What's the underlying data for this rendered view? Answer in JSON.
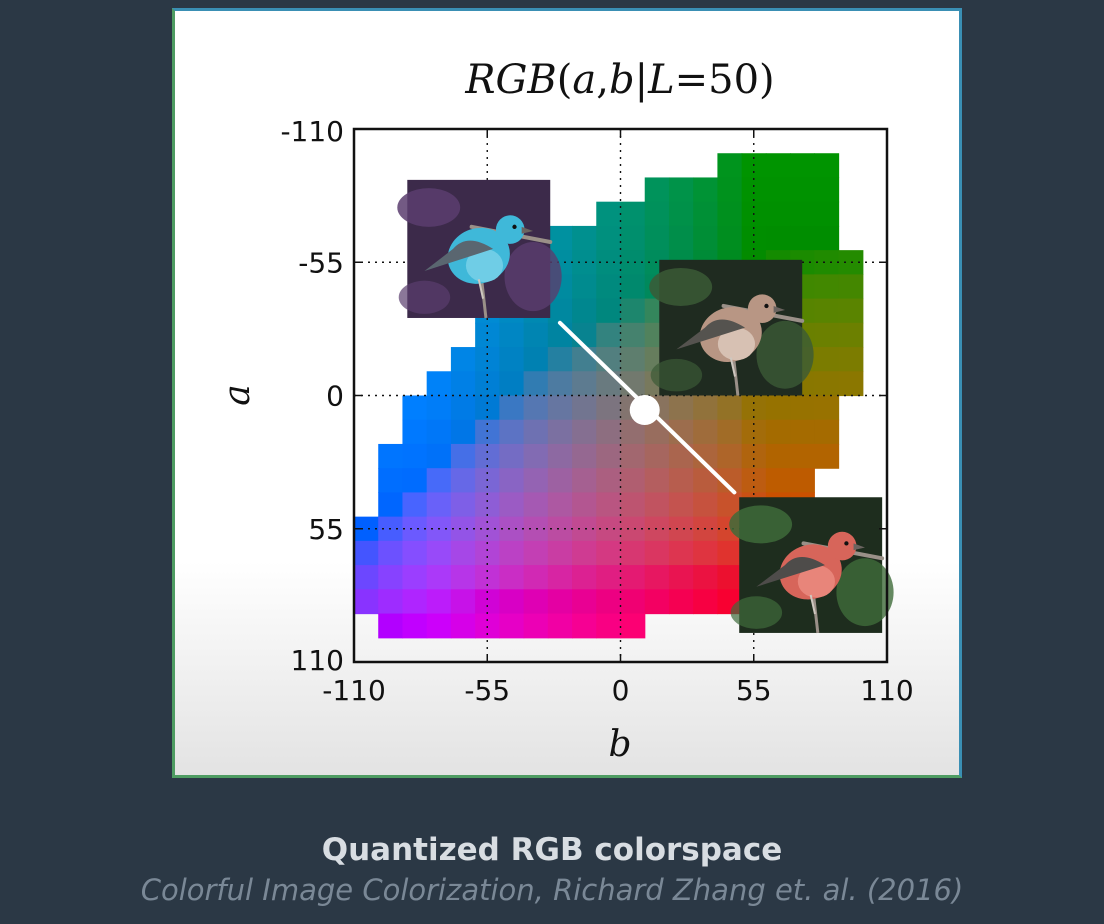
{
  "chart_data": {
    "type": "heatmap",
    "title": "RGB(a,b|L=50)",
    "xlabel": "b",
    "ylabel": "a",
    "xlim": [
      -110,
      110
    ],
    "ylim": [
      -110,
      110
    ],
    "y_inverted": true,
    "grid": true,
    "xticks": [
      "-110",
      "-55",
      "0",
      "55",
      "110"
    ],
    "yticks": [
      "-110",
      "-55",
      "0",
      "55",
      "110"
    ],
    "tick_values": [
      -110,
      -55,
      0,
      55,
      110
    ],
    "grid_values": [
      -55,
      0,
      55
    ],
    "cell_size": 10,
    "lightness": 50,
    "gamut_rows": [
      {
        "a": -95,
        "b_min": 45,
        "b_max": 85
      },
      {
        "a": -85,
        "b_min": 15,
        "b_max": 85
      },
      {
        "a": -75,
        "b_min": -5,
        "b_max": 85
      },
      {
        "a": -65,
        "b_min": -25,
        "b_max": 85
      },
      {
        "a": -55,
        "b_min": -35,
        "b_max": 95
      },
      {
        "a": -45,
        "b_min": -45,
        "b_max": 95
      },
      {
        "a": -35,
        "b_min": -55,
        "b_max": 95
      },
      {
        "a": -25,
        "b_min": -55,
        "b_max": 95
      },
      {
        "a": -15,
        "b_min": -65,
        "b_max": 95
      },
      {
        "a": -5,
        "b_min": -75,
        "b_max": 95
      },
      {
        "a": 5,
        "b_min": -85,
        "b_max": 85
      },
      {
        "a": 15,
        "b_min": -85,
        "b_max": 85
      },
      {
        "a": 25,
        "b_min": -95,
        "b_max": 85
      },
      {
        "a": 35,
        "b_min": -95,
        "b_max": 75
      },
      {
        "a": 45,
        "b_min": -95,
        "b_max": 75
      },
      {
        "a": 55,
        "b_min": -105,
        "b_max": 75
      },
      {
        "a": 65,
        "b_min": -105,
        "b_max": 75
      },
      {
        "a": 75,
        "b_min": -105,
        "b_max": 65
      },
      {
        "a": 85,
        "b_min": -105,
        "b_max": 55
      },
      {
        "a": 95,
        "b_min": -95,
        "b_max": 5
      }
    ],
    "overlay_line": {
      "from": {
        "b": -25,
        "a": -30
      },
      "to": {
        "b": 47,
        "a": 40
      }
    },
    "center_marker": {
      "b": 10,
      "a": 6
    },
    "inset_images": [
      {
        "name": "blue-bird",
        "b_min": -88,
        "b_max": -29,
        "a_min": -89,
        "a_max": -32,
        "bg": "#3c2a4a",
        "body": "#3fb8d9",
        "belly": "#6fcde6",
        "wing": "#5a6670",
        "foliage": "#5a3d6e"
      },
      {
        "name": "natural-bird",
        "b_min": 16,
        "b_max": 75,
        "a_min": -56,
        "a_max": 0,
        "bg": "#1f2b20",
        "body": "#b89684",
        "belly": "#d7c1b3",
        "wing": "#55534f",
        "foliage": "#3b5a36"
      },
      {
        "name": "red-bird",
        "b_min": 49,
        "b_max": 108,
        "a_min": 42,
        "a_max": 98,
        "bg": "#1e2d1e",
        "body": "#d7655a",
        "belly": "#e8857a",
        "wing": "#4e4c4a",
        "foliage": "#3e6b3a"
      }
    ]
  },
  "caption": {
    "title": "Quantized RGB colorspace",
    "citation": "Colorful Image Colorization, Richard Zhang et. al. (2016)"
  },
  "colors": {
    "background": "#2b3845",
    "frame_border": "#3a8fb4",
    "caption_title": "#d8dde2",
    "caption_citation": "#7a8896"
  }
}
